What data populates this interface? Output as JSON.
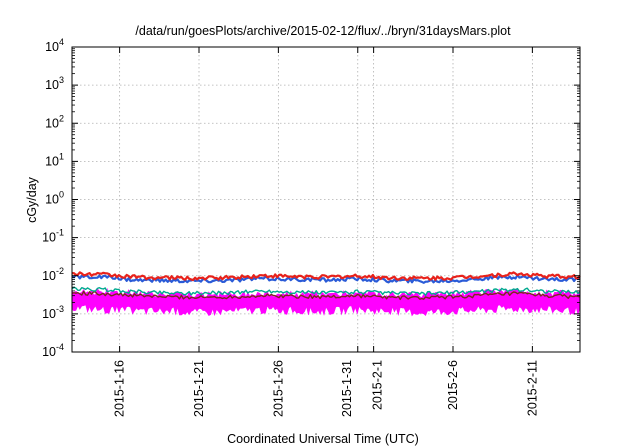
{
  "chart_data": {
    "type": "line",
    "title": "/data/run/goesPlots/archive/2015-02-12/flux/../bryn/31daysMars.plot",
    "xlabel": "Coordinated Universal Time (UTC)",
    "ylabel": "cGy/day",
    "y_scale": "log",
    "ylim": [
      0.0001,
      10000
    ],
    "y_ticks": [
      {
        "base": "10",
        "exp": "4",
        "value": 10000
      },
      {
        "base": "10",
        "exp": "3",
        "value": 1000
      },
      {
        "base": "10",
        "exp": "2",
        "value": 100
      },
      {
        "base": "10",
        "exp": "1",
        "value": 10
      },
      {
        "base": "10",
        "exp": "0",
        "value": 1
      },
      {
        "base": "10",
        "exp": "-1",
        "value": 0.1
      },
      {
        "base": "10",
        "exp": "-2",
        "value": 0.01
      },
      {
        "base": "10",
        "exp": "-3",
        "value": 0.001
      },
      {
        "base": "10",
        "exp": "-4",
        "value": 0.0001
      }
    ],
    "xlim": [
      "2015-01-13",
      "2015-02-14"
    ],
    "x_ticks": [
      {
        "date": "2015-01-16",
        "label": "2015-1-16"
      },
      {
        "date": "2015-01-21",
        "label": "2015-1-21"
      },
      {
        "date": "2015-01-26",
        "label": "2015-1-26"
      },
      {
        "date": "2015-01-31",
        "label": "2015-1-31"
      },
      {
        "date": "2015-02-01",
        "label": "2015-2-1"
      },
      {
        "date": "2015-02-06",
        "label": "2015-2-6"
      },
      {
        "date": "2015-02-11",
        "label": "2015-2-11"
      }
    ],
    "grid": true,
    "series": [
      {
        "color": "#ff00ff",
        "fill": true,
        "x": [
          "2015-01-13",
          "2015-01-15",
          "2015-01-17",
          "2015-01-19",
          "2015-01-21",
          "2015-01-23",
          "2015-01-25",
          "2015-01-27",
          "2015-01-29",
          "2015-01-31",
          "2015-02-02",
          "2015-02-04",
          "2015-02-06",
          "2015-02-08",
          "2015-02-10",
          "2015-02-12",
          "2015-02-14"
        ],
        "low": [
          0.0015,
          0.0013,
          0.0012,
          0.0012,
          0.0011,
          0.0012,
          0.0013,
          0.0012,
          0.0012,
          0.0013,
          0.0012,
          0.0011,
          0.0012,
          0.0013,
          0.0014,
          0.0013,
          0.0012
        ],
        "high": [
          0.004,
          0.0038,
          0.0035,
          0.0032,
          0.003,
          0.0032,
          0.0035,
          0.0033,
          0.0032,
          0.0034,
          0.0031,
          0.003,
          0.0032,
          0.0036,
          0.004,
          0.0035,
          0.0033
        ]
      },
      {
        "color": "#7b2a1e",
        "x": [
          "2015-01-13",
          "2015-01-15",
          "2015-01-17",
          "2015-01-19",
          "2015-01-21",
          "2015-01-23",
          "2015-01-25",
          "2015-01-27",
          "2015-01-29",
          "2015-01-31",
          "2015-02-02",
          "2015-02-04",
          "2015-02-06",
          "2015-02-08",
          "2015-02-10",
          "2015-02-12",
          "2015-02-14"
        ],
        "values": [
          0.0035,
          0.0034,
          0.003,
          0.0028,
          0.0027,
          0.0028,
          0.003,
          0.0029,
          0.0028,
          0.003,
          0.0027,
          0.0026,
          0.0028,
          0.0031,
          0.0034,
          0.003,
          0.0028
        ]
      },
      {
        "color": "#00a98f",
        "x": [
          "2015-01-13",
          "2015-01-15",
          "2015-01-17",
          "2015-01-19",
          "2015-01-21",
          "2015-01-23",
          "2015-01-25",
          "2015-01-27",
          "2015-01-29",
          "2015-01-31",
          "2015-02-02",
          "2015-02-04",
          "2015-02-06",
          "2015-02-08",
          "2015-02-10",
          "2015-02-12",
          "2015-02-14"
        ],
        "values": [
          0.0045,
          0.0043,
          0.0038,
          0.0036,
          0.0035,
          0.0036,
          0.004,
          0.0037,
          0.0036,
          0.0038,
          0.0035,
          0.0034,
          0.0036,
          0.004,
          0.0044,
          0.0039,
          0.0037
        ]
      },
      {
        "color": "#2a5bd7",
        "x": [
          "2015-01-13",
          "2015-01-15",
          "2015-01-17",
          "2015-01-19",
          "2015-01-21",
          "2015-01-23",
          "2015-01-25",
          "2015-01-27",
          "2015-01-29",
          "2015-01-31",
          "2015-02-02",
          "2015-02-04",
          "2015-02-06",
          "2015-02-08",
          "2015-02-10",
          "2015-02-12",
          "2015-02-14"
        ],
        "values": [
          0.0095,
          0.0092,
          0.0078,
          0.0075,
          0.0073,
          0.0076,
          0.0085,
          0.008,
          0.0078,
          0.0083,
          0.0075,
          0.0072,
          0.0075,
          0.0085,
          0.0095,
          0.0082,
          0.0078
        ]
      },
      {
        "color": "#e8221b",
        "x": [
          "2015-01-13",
          "2015-01-15",
          "2015-01-17",
          "2015-01-19",
          "2015-01-21",
          "2015-01-23",
          "2015-01-25",
          "2015-01-27",
          "2015-01-29",
          "2015-01-31",
          "2015-02-02",
          "2015-02-04",
          "2015-02-06",
          "2015-02-08",
          "2015-02-10",
          "2015-02-12",
          "2015-02-14"
        ],
        "values": [
          0.0112,
          0.0108,
          0.0092,
          0.0088,
          0.0086,
          0.009,
          0.01,
          0.0095,
          0.0092,
          0.0098,
          0.0088,
          0.0085,
          0.0088,
          0.01,
          0.0112,
          0.0097,
          0.0092
        ]
      }
    ]
  }
}
